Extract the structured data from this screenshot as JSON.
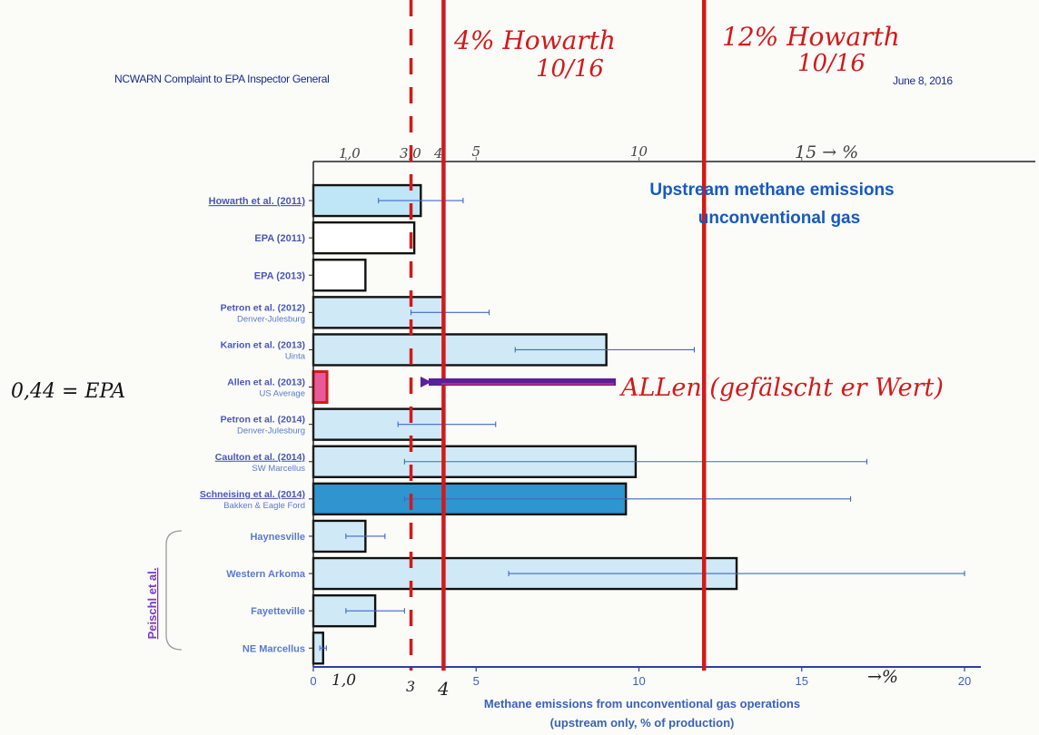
{
  "header": {
    "left_title": "NCWARN Complaint to EPA Inspector General",
    "date": "June 8, 2016"
  },
  "annotations": {
    "howarth_4": {
      "line1": "4% Howarth",
      "line2": "10/16"
    },
    "howarth_12": {
      "line1": "12% Howarth",
      "line2": "10/16"
    },
    "top_axis_note": "15 → %",
    "bottom_axis_note": "→%",
    "allen_note": "ALLen (gefälscht er Wert)",
    "epa_note": "0,44 = EPA",
    "bottom_marks": [
      "1,0",
      "3",
      "4"
    ],
    "top_marks": [
      "1,0",
      "3,0",
      "4"
    ]
  },
  "chart_data": {
    "type": "bar",
    "orientation": "horizontal",
    "title": "Upstream methane emissions unconventional gas",
    "xlabel": "Methane emissions from unconventional gas operations",
    "xlabel_sub": "(upstream only, % of production)",
    "xlim": [
      0,
      20
    ],
    "x_ticks": [
      "0",
      "5",
      "10",
      "15",
      "20"
    ],
    "group_label": "Peischl et al.",
    "bars": [
      {
        "label": "Howarth et al. (2011)",
        "sub": "",
        "value": 3.3,
        "err_low": 2.0,
        "err_high": 4.6,
        "color": "#bfe6f7",
        "underline": true
      },
      {
        "label": "EPA (2011)",
        "sub": "",
        "value": 3.1,
        "color": "#ffffff",
        "underline": false
      },
      {
        "label": "EPA (2013)",
        "sub": "",
        "value": 1.6,
        "color": "#ffffff",
        "underline": false
      },
      {
        "label": "Petron et al. (2012)",
        "sub": "Denver-Julesburg",
        "value": 4.0,
        "err_low": 3.0,
        "err_high": 5.4,
        "color": "#cfe9f7",
        "underline": false
      },
      {
        "label": "Karion et al. (2013)",
        "sub": "Uinta",
        "value": 9.0,
        "err_low": 6.2,
        "err_high": 11.7,
        "color": "#cfe9f7",
        "underline": false
      },
      {
        "label": "Allen et al. (2013)",
        "sub": "US Average",
        "value": 0.42,
        "color": "#e85a9a",
        "underline": false
      },
      {
        "label": "Petron et al. (2014)",
        "sub": "Denver-Julesburg",
        "value": 4.0,
        "err_low": 2.6,
        "err_high": 5.6,
        "color": "#cfe9f7",
        "underline": false
      },
      {
        "label": "Caulton et al. (2014)",
        "sub": "SW Marcellus",
        "value": 9.9,
        "err_low": 2.8,
        "err_high": 17.0,
        "color": "#cfe9f7",
        "underline": true
      },
      {
        "label": "Schneising et al. (2014)",
        "sub": "Bakken & Eagle Ford",
        "value": 9.6,
        "err_low": 2.8,
        "err_high": 16.5,
        "color": "#2e95cf",
        "underline": true
      },
      {
        "label": "Haynesville",
        "sub": "",
        "value": 1.6,
        "err_low": 1.0,
        "err_high": 2.2,
        "color": "#cfe9f7",
        "underline": false
      },
      {
        "label": "Western Arkoma",
        "sub": "",
        "value": 13.0,
        "err_low": 6.0,
        "err_high": 20.0,
        "color": "#cfe9f7",
        "underline": false
      },
      {
        "label": "Fayetteville",
        "sub": "",
        "value": 1.9,
        "err_low": 1.0,
        "err_high": 2.8,
        "color": "#cfe9f7",
        "underline": false
      },
      {
        "label": "NE Marcellus",
        "sub": "",
        "value": 0.3,
        "err_low": 0.2,
        "err_high": 0.4,
        "color": "#cfe9f7",
        "underline": false
      }
    ],
    "reference_lines": [
      {
        "value": 3.0,
        "style": "dashed",
        "color": "#d11a1a"
      },
      {
        "value": 4.0,
        "style": "solid",
        "color": "#d11a1a"
      },
      {
        "value": 12.0,
        "style": "solid",
        "color": "#d11a1a"
      }
    ]
  }
}
